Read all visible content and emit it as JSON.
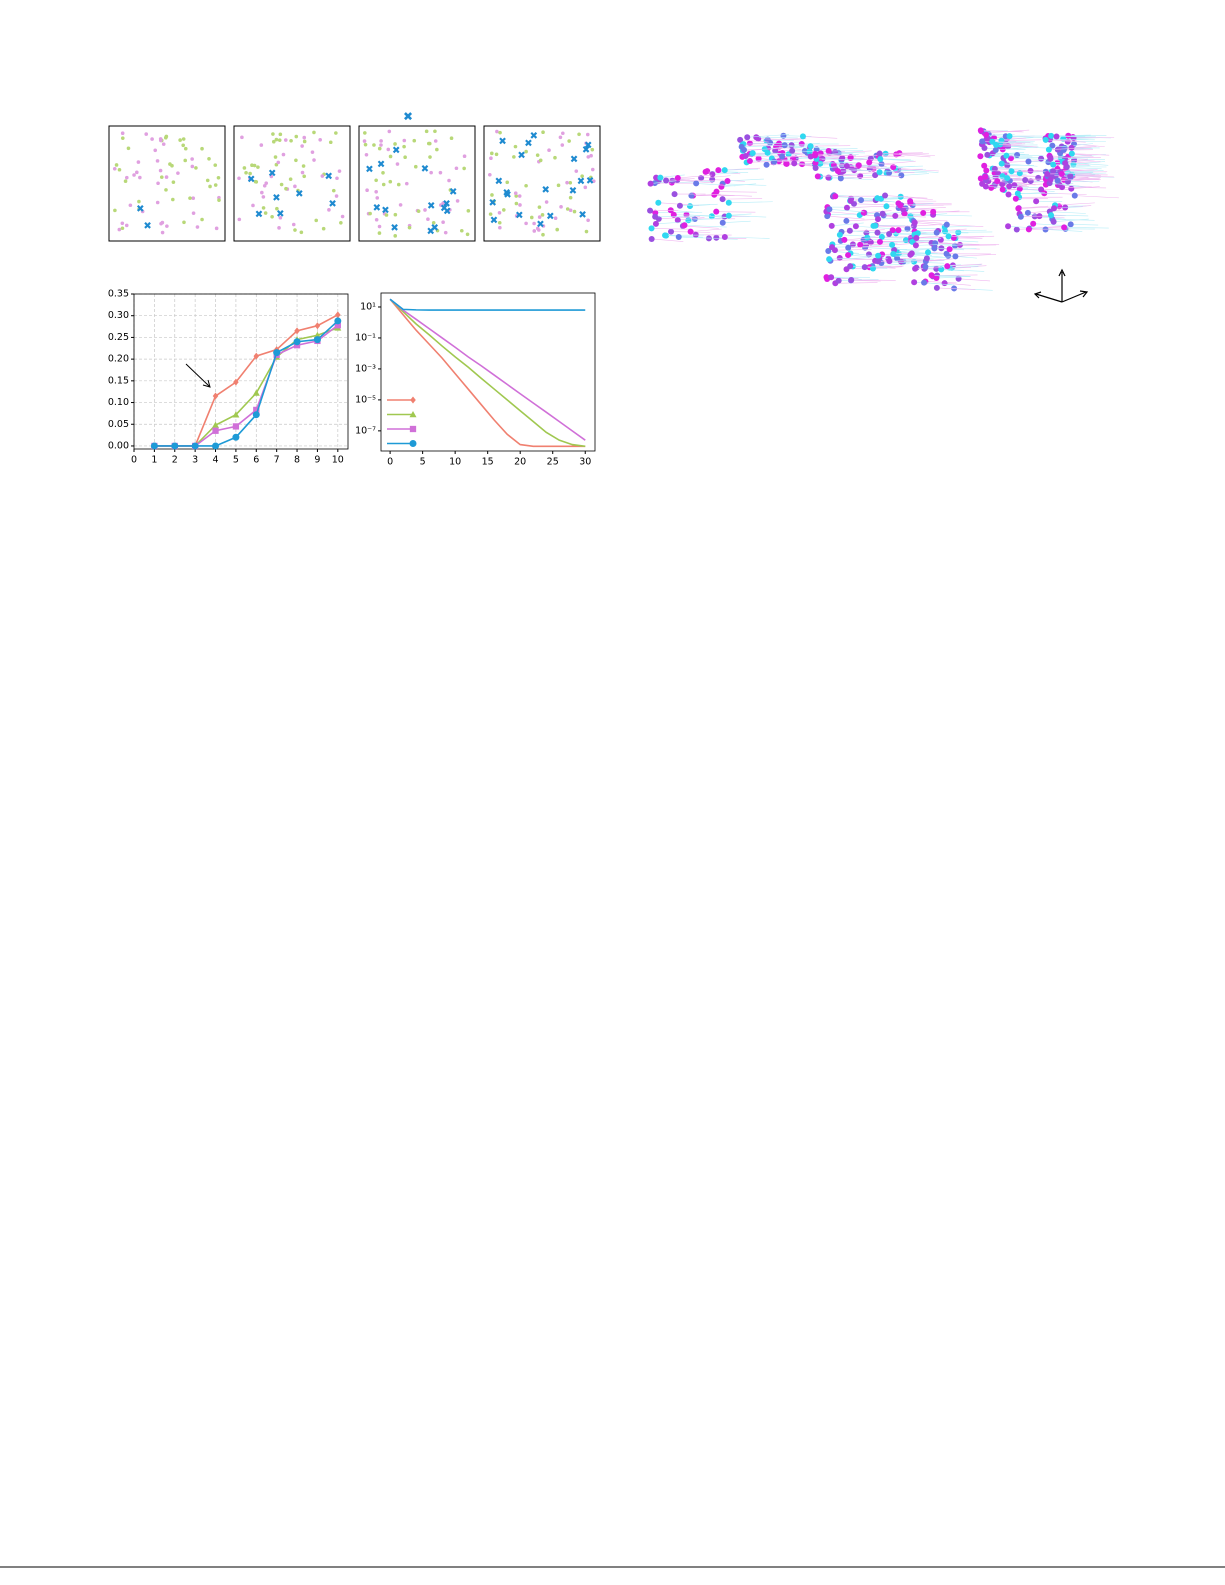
{
  "chart_data": [
    {
      "type": "line",
      "grid": true,
      "markers": true,
      "x": [
        1,
        2,
        3,
        4,
        5,
        6,
        7,
        8,
        9,
        10
      ],
      "xlim": [
        0,
        10.5
      ],
      "xticks": [
        0,
        1,
        2,
        3,
        4,
        5,
        6,
        7,
        8,
        9,
        10
      ],
      "ylim": [
        -0.007,
        0.35
      ],
      "yticks": [
        {
          "value": 0,
          "label": "0.00"
        },
        {
          "value": 0.05,
          "label": "0.05"
        },
        {
          "value": 0.1,
          "label": "0.10"
        },
        {
          "value": 0.15,
          "label": "0.15"
        },
        {
          "value": 0.2,
          "label": "0.20"
        },
        {
          "value": 0.25,
          "label": "0.25"
        },
        {
          "value": 0.3,
          "label": "0.30"
        },
        {
          "value": 0.35,
          "label": "0.35"
        }
      ],
      "series": [
        {
          "color": "#f08070",
          "marker": "diamond",
          "values": [
            0,
            0,
            0,
            0.115,
            0.147,
            0.207,
            0.222,
            0.265,
            0.277,
            0.302
          ]
        },
        {
          "color": "#a0c850",
          "marker": "triangle",
          "values": [
            0,
            0,
            0,
            0.048,
            0.072,
            0.122,
            0.205,
            0.245,
            0.255,
            0.272
          ]
        },
        {
          "color": "#d070d8",
          "marker": "square",
          "values": [
            0,
            0,
            0,
            0.035,
            0.045,
            0.083,
            0.21,
            0.232,
            0.242,
            0.278
          ]
        },
        {
          "color": "#1e9ad6",
          "marker": "circle",
          "values": [
            0,
            0,
            0,
            0,
            0.02,
            0.072,
            0.215,
            0.24,
            0.245,
            0.288
          ]
        }
      ]
    },
    {
      "type": "line",
      "grid": false,
      "markers": false,
      "log_y": true,
      "legend": "lower left",
      "x": [
        0,
        2,
        4,
        6,
        8,
        10,
        12,
        14,
        16,
        18,
        20,
        22,
        24,
        26,
        28,
        30
      ],
      "xlim": [
        -1.4,
        31.5
      ],
      "xticks": [
        0,
        5,
        10,
        15,
        20,
        25,
        30
      ],
      "ylim": [
        5e-09,
        80
      ],
      "yticks": [
        {
          "value": 10,
          "label": "10¹"
        },
        {
          "value": 0.1,
          "label": "10⁻¹"
        },
        {
          "value": 0.001,
          "label": "10⁻³"
        },
        {
          "value": 1e-05,
          "label": "10⁻⁵"
        },
        {
          "value": 1e-07,
          "label": "10⁻⁷"
        }
      ],
      "series": [
        {
          "color": "#f08070",
          "marker": "diamond",
          "values": [
            31.6,
            3.16,
            0.316,
            0.04,
            0.005,
            0.0005,
            5e-05,
            5e-06,
            5e-07,
            6e-08,
            1.3e-08,
            1e-08,
            1e-08,
            1e-08,
            1e-08,
            1e-08
          ]
        },
        {
          "color": "#a0c850",
          "marker": "triangle",
          "values": [
            31.6,
            5,
            0.8,
            0.16,
            0.03,
            0.006,
            0.0013,
            0.00025,
            5e-05,
            1e-05,
            2e-06,
            4e-07,
            8e-08,
            2.5e-08,
            1.3e-08,
            1e-08
          ]
        },
        {
          "color": "#d070d8",
          "marker": "square",
          "values": [
            31.6,
            6.3,
            1.6,
            0.4,
            0.1,
            0.025,
            0.006,
            0.0016,
            0.0004,
            0.0001,
            2.5e-05,
            6.3e-06,
            1.6e-06,
            4e-07,
            1e-07,
            2.5e-08
          ]
        },
        {
          "color": "#1e9ad6",
          "marker": "circle",
          "values": [
            31.6,
            7,
            6.5,
            6.3,
            6.3,
            6.3,
            6.3,
            6.3,
            6.3,
            6.3,
            6.3,
            6.3,
            6.3,
            6.3,
            6.3,
            6.3
          ]
        }
      ]
    }
  ]
}
